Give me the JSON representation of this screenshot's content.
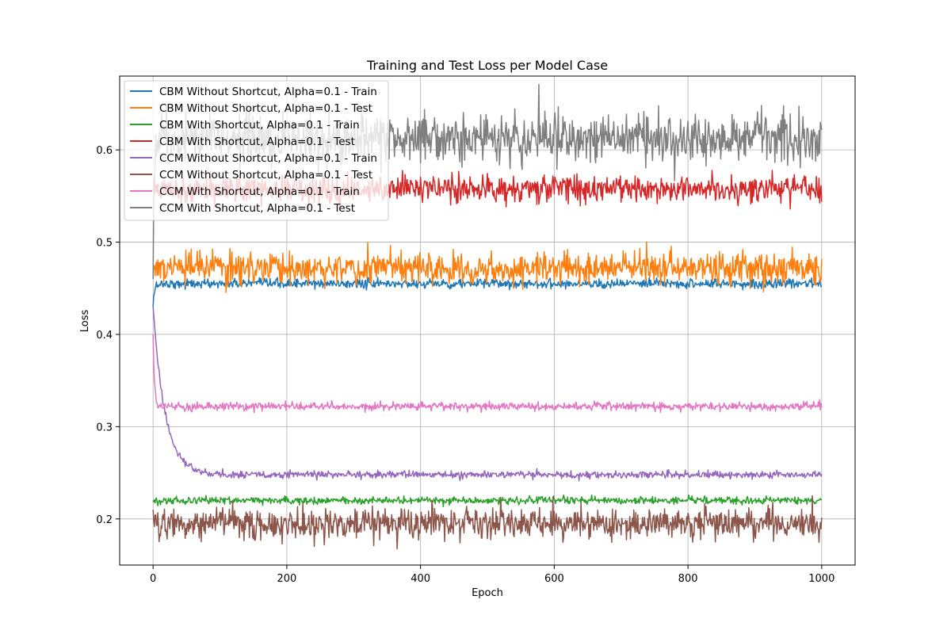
{
  "chart_data": {
    "type": "line",
    "title": "Training and Test Loss per Model Case",
    "xlabel": "Epoch",
    "ylabel": "Loss",
    "xlim": [
      -50,
      1050
    ],
    "ylim": [
      0.15,
      0.68
    ],
    "xticks": [
      0,
      200,
      400,
      600,
      800,
      1000
    ],
    "yticks": [
      0.2,
      0.3,
      0.4,
      0.5,
      0.6
    ],
    "xtick_labels": [
      "0",
      "200",
      "400",
      "600",
      "800",
      "1000"
    ],
    "ytick_labels": [
      "0.2",
      "0.3",
      "0.4",
      "0.5",
      "0.6"
    ],
    "grid": true,
    "legend_position": "top-left",
    "epochs": [
      0,
      1000
    ],
    "series": [
      {
        "name": "CBM Without Shortcut, Alpha=0.1 - Train",
        "color": "#1f77b4",
        "start": 0.43,
        "plateau": 0.455,
        "noise": 0.0025,
        "decay_epochs": 2
      },
      {
        "name": "CBM Without Shortcut, Alpha=0.1 - Test",
        "color": "#ff7f0e",
        "start": 0.47,
        "plateau": 0.472,
        "noise": 0.0085,
        "decay_epochs": 1
      },
      {
        "name": "CBM With Shortcut, Alpha=0.1 - Train",
        "color": "#2ca02c",
        "start": 0.22,
        "plateau": 0.22,
        "noise": 0.002,
        "decay_epochs": 1
      },
      {
        "name": "CBM With Shortcut, Alpha=0.1 - Test",
        "color": "#d62728",
        "start": 0.555,
        "plateau": 0.558,
        "noise": 0.0075,
        "decay_epochs": 1
      },
      {
        "name": "CCM Without Shortcut, Alpha=0.1 - Train",
        "color": "#9467bd",
        "start": 0.43,
        "plateau": 0.248,
        "noise": 0.002,
        "decay_epochs": 18
      },
      {
        "name": "CCM Without Shortcut, Alpha=0.1 - Test",
        "color": "#8c564b",
        "start": 0.21,
        "plateau": 0.195,
        "noise": 0.0085,
        "decay_epochs": 1
      },
      {
        "name": "CCM With Shortcut, Alpha=0.1 - Train",
        "color": "#e377c2",
        "start": 0.4,
        "plateau": 0.322,
        "noise": 0.0022,
        "decay_epochs": 2
      },
      {
        "name": "CCM With Shortcut, Alpha=0.1 - Test",
        "color": "#7f7f7f",
        "start": 0.46,
        "plateau": 0.612,
        "noise": 0.013,
        "decay_epochs": 2
      }
    ]
  }
}
